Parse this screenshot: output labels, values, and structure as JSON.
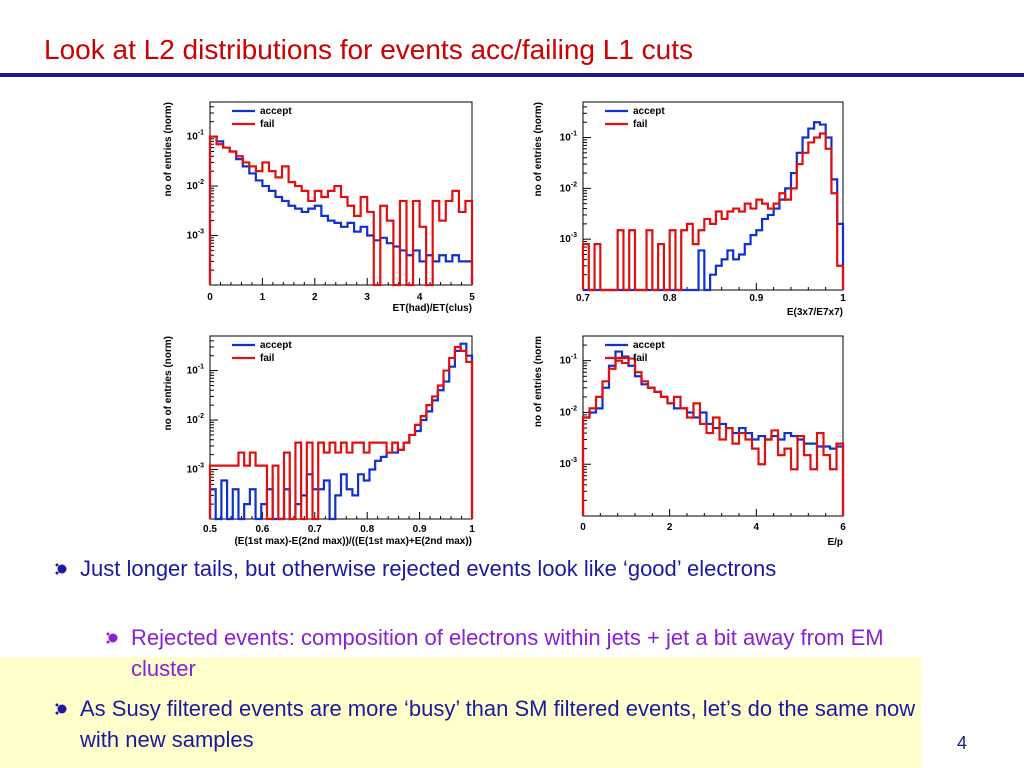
{
  "slide": {
    "title": "Look at L2 distributions for events acc/failing L1 cuts",
    "page_number": "4",
    "accent_color": "#1a1a8c",
    "title_color": "#cc0000",
    "highlight_color": "#ffffcc"
  },
  "bullets": [
    {
      "level": 1,
      "text": "Just longer tails, but otherwise rejected events look like ‘good’ electrons",
      "color": "#1a1aa0"
    },
    {
      "level": 2,
      "text": "Rejected events: composition of electrons within jets + jet a bit away from EM cluster",
      "color": "#8b1fd4"
    },
    {
      "level": 1,
      "text": "As Susy filtered events are more ‘busy’ than SM filtered events, let’s do the same now with new samples",
      "color": "#1a1aa0"
    }
  ],
  "chart_data": [
    {
      "type": "line",
      "ylabel": "no of entries (norm)",
      "xlabel": "ET(had)/ET(clus)",
      "xlim": [
        0,
        5
      ],
      "ylim": [
        0.0001,
        0.5
      ],
      "yscale": "log",
      "xticks": [
        "0",
        "1",
        "2",
        "3",
        "4",
        "5"
      ],
      "yticks": [
        {
          "label": "10",
          "sup": "-1",
          "value": 0.1
        },
        {
          "label": "10",
          "sup": "-2",
          "value": 0.01
        },
        {
          "label": "10",
          "sup": "-3",
          "value": 0.001
        }
      ],
      "legend": [
        "accept",
        "fail"
      ],
      "series": [
        {
          "name": "accept",
          "color": "#1030d0",
          "values": [
            0.1,
            0.08,
            0.06,
            0.05,
            0.035,
            0.025,
            0.018,
            0.013,
            0.01,
            0.008,
            0.006,
            0.005,
            0.004,
            0.0035,
            0.003,
            0.0035,
            0.004,
            0.0025,
            0.002,
            0.0018,
            0.0015,
            0.0018,
            0.0012,
            0.0015,
            0.001,
            0.0008,
            0.0009,
            0.0007,
            0.0006,
            0.0005,
            0.0004,
            0.0005,
            0.0003,
            0.0004,
            0.0003,
            0.0004,
            0.0003,
            0.0004,
            0.0003,
            0.0003
          ]
        },
        {
          "name": "fail",
          "color": "#e01010",
          "values": [
            0.1,
            0.07,
            0.06,
            0.05,
            0.04,
            0.03,
            0.025,
            0.02,
            0.03,
            0.02,
            0.015,
            0.025,
            0.012,
            0.01,
            0.008,
            0.005,
            0.008,
            0.006,
            0.008,
            0.01,
            0.006,
            0.004,
            0.0025,
            0.006,
            0.003,
            0.0001,
            0.004,
            0.002,
            0.0001,
            0.005,
            0.0001,
            0.005,
            0.0015,
            0.0001,
            0.005,
            0.002,
            0.005,
            0.008,
            0.003,
            0.005
          ]
        }
      ]
    },
    {
      "type": "line",
      "ylabel": "no of entries (norm)",
      "xlabel": "E(3x7/E7x7)",
      "xlim": [
        0.7,
        1
      ],
      "ylim": [
        0.0001,
        0.5
      ],
      "yscale": "log",
      "xticks": [
        "0.7",
        "0.8",
        "0.9",
        "1"
      ],
      "yticks": [
        {
          "label": "10",
          "sup": "-1",
          "value": 0.1
        },
        {
          "label": "10",
          "sup": "-2",
          "value": 0.01
        },
        {
          "label": "10",
          "sup": "-3",
          "value": 0.001
        }
      ],
      "legend": [
        "accept",
        "fail"
      ],
      "series": [
        {
          "name": "accept",
          "color": "#1030d0",
          "values": [
            0.0001,
            0.0001,
            0.0001,
            0.0001,
            0.0001,
            0.0001,
            0.0001,
            0.0001,
            0.0001,
            0.0001,
            0.0001,
            0.0001,
            0.0001,
            0.0001,
            0.0001,
            0.0001,
            0.0001,
            0.0001,
            0.0001,
            0.0001,
            0.0006,
            0.0001,
            0.0002,
            0.0003,
            0.0004,
            0.0006,
            0.0004,
            0.0005,
            0.0008,
            0.0012,
            0.0015,
            0.0025,
            0.003,
            0.004,
            0.006,
            0.01,
            0.02,
            0.05,
            0.1,
            0.15,
            0.2,
            0.18,
            0.1,
            0.015,
            0.002
          ]
        },
        {
          "name": "fail",
          "color": "#e01010",
          "values": [
            0.0008,
            0.0001,
            0.0008,
            0.0001,
            0.0001,
            0.0001,
            0.0015,
            0.0001,
            0.0015,
            0.0001,
            0.0001,
            0.0015,
            0.0001,
            0.0008,
            0.0001,
            0.0015,
            0.0001,
            0.0015,
            0.002,
            0.0008,
            0.0015,
            0.0025,
            0.002,
            0.0035,
            0.0025,
            0.0035,
            0.004,
            0.0035,
            0.005,
            0.004,
            0.006,
            0.005,
            0.004,
            0.005,
            0.008,
            0.006,
            0.01,
            0.03,
            0.05,
            0.08,
            0.1,
            0.12,
            0.06,
            0.008,
            0.0003
          ]
        }
      ]
    },
    {
      "type": "line",
      "ylabel": "no of entries (norm)",
      "xlabel": "(E(1st max)-E(2nd max))/((E(1st max)+E(2nd max))",
      "xlim": [
        0.5,
        1
      ],
      "ylim": [
        0.0001,
        0.5
      ],
      "yscale": "log",
      "xticks": [
        "0.5",
        "0.6",
        "0.7",
        "0.8",
        "0.9",
        "1"
      ],
      "yticks": [
        {
          "label": "10",
          "sup": "-1",
          "value": 0.1
        },
        {
          "label": "10",
          "sup": "-2",
          "value": 0.01
        },
        {
          "label": "10",
          "sup": "-3",
          "value": 0.001
        }
      ],
      "legend": [
        "accept",
        "fail"
      ],
      "series": [
        {
          "name": "accept",
          "color": "#1030d0",
          "values": [
            0.0004,
            0.0001,
            0.0006,
            0.0001,
            0.0004,
            0.0001,
            0.0002,
            0.0004,
            0.0001,
            0.0002,
            0.0004,
            0.0001,
            0.0001,
            0.0004,
            0.0001,
            0.0002,
            0.0003,
            0.0008,
            0.0004,
            0.0004,
            0.0006,
            0.0001,
            0.0003,
            0.0008,
            0.0004,
            0.0003,
            0.0008,
            0.0006,
            0.001,
            0.0015,
            0.0018,
            0.0022,
            0.0022,
            0.0025,
            0.0035,
            0.005,
            0.006,
            0.01,
            0.015,
            0.025,
            0.04,
            0.06,
            0.12,
            0.25,
            0.35,
            0.2
          ]
        },
        {
          "name": "fail",
          "color": "#e01010",
          "values": [
            0.0012,
            0.0012,
            0.0012,
            0.0012,
            0.0012,
            0.0022,
            0.0012,
            0.0022,
            0.0012,
            0.0012,
            0.0001,
            0.0012,
            0.0001,
            0.0022,
            0.0001,
            0.0035,
            0.0001,
            0.0035,
            0.0001,
            0.0035,
            0.0022,
            0.0035,
            0.0022,
            0.0035,
            0.0022,
            0.0035,
            0.0035,
            0.0022,
            0.0035,
            0.0035,
            0.0035,
            0.0022,
            0.0035,
            0.0025,
            0.0035,
            0.005,
            0.008,
            0.012,
            0.02,
            0.03,
            0.05,
            0.1,
            0.18,
            0.3,
            0.25,
            0.15
          ]
        }
      ]
    },
    {
      "type": "line",
      "ylabel": "no of entries (norm",
      "xlabel": "E/p",
      "xlim": [
        0,
        6
      ],
      "ylim": [
        0.0001,
        0.3
      ],
      "yscale": "log",
      "xticks": [
        "0",
        "2",
        "4",
        "6"
      ],
      "yticks": [
        {
          "label": "10",
          "sup": "-1",
          "value": 0.1
        },
        {
          "label": "10",
          "sup": "-2",
          "value": 0.01
        },
        {
          "label": "10",
          "sup": "-3",
          "value": 0.001
        }
      ],
      "legend": [
        "accept",
        "fail"
      ],
      "series": [
        {
          "name": "accept",
          "color": "#1030d0",
          "values": [
            0.008,
            0.01,
            0.012,
            0.03,
            0.08,
            0.15,
            0.12,
            0.08,
            0.05,
            0.035,
            0.03,
            0.025,
            0.02,
            0.015,
            0.012,
            0.012,
            0.01,
            0.008,
            0.01,
            0.006,
            0.005,
            0.006,
            0.005,
            0.004,
            0.005,
            0.004,
            0.003,
            0.0035,
            0.003,
            0.0035,
            0.003,
            0.004,
            0.0035,
            0.003,
            0.0025,
            0.0025,
            0.0022,
            0.0022,
            0.002,
            0.0022
          ]
        },
        {
          "name": "fail",
          "color": "#e01010",
          "values": [
            0.008,
            0.012,
            0.02,
            0.04,
            0.07,
            0.1,
            0.09,
            0.11,
            0.06,
            0.04,
            0.03,
            0.025,
            0.02,
            0.015,
            0.02,
            0.012,
            0.008,
            0.015,
            0.006,
            0.004,
            0.008,
            0.003,
            0.005,
            0.0025,
            0.004,
            0.003,
            0.002,
            0.001,
            0.003,
            0.0045,
            0.0015,
            0.002,
            0.0008,
            0.0035,
            0.0015,
            0.0008,
            0.004,
            0.0015,
            0.0008,
            0.0025
          ]
        }
      ]
    }
  ]
}
